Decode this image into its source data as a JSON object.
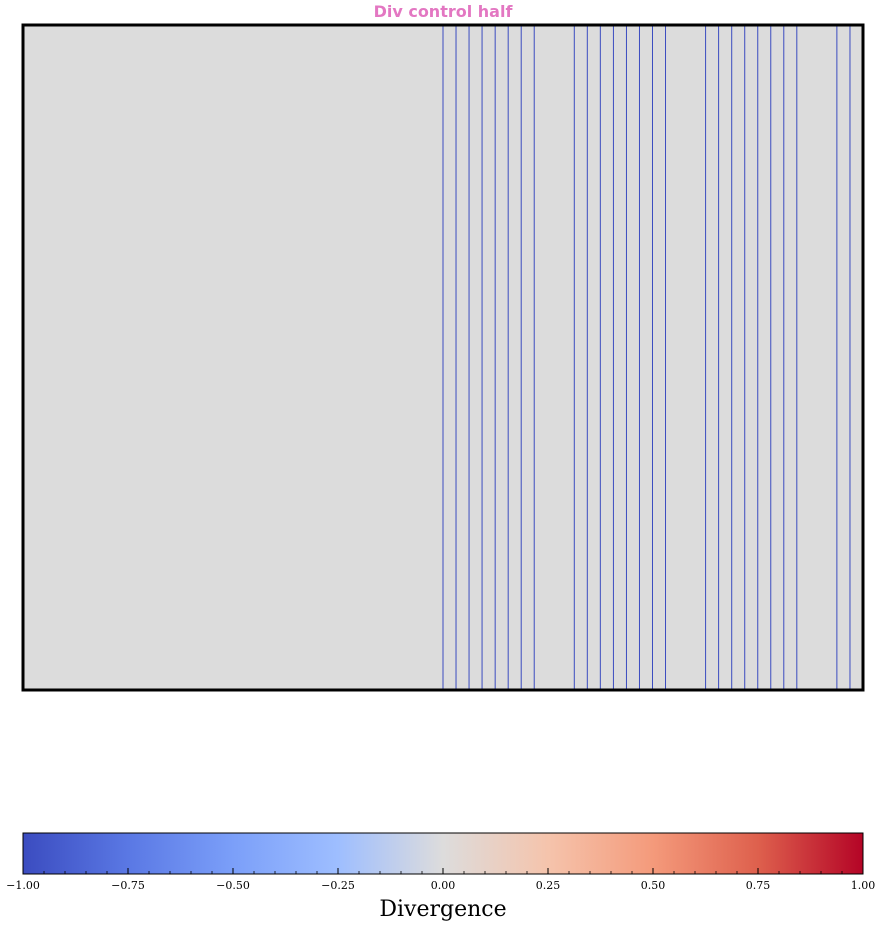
{
  "chart_data": {
    "type": "heatmap",
    "title": "Div control half",
    "background_color": "#dcdcdc",
    "line_color": "#3b4cc0",
    "vertical_lines_x_fraction": [
      0.5,
      0.5155,
      0.531,
      0.5465,
      0.5621,
      0.5776,
      0.5931,
      0.6086,
      0.6563,
      0.6718,
      0.6873,
      0.7029,
      0.7184,
      0.7339,
      0.7494,
      0.7649,
      0.8126,
      0.8281,
      0.8437,
      0.8592,
      0.8747,
      0.8902,
      0.9057,
      0.9212,
      0.9689,
      0.9845
    ],
    "colorbar": {
      "label": "Divergence",
      "cmap": "coolwarm",
      "range": [
        -1.0,
        1.0
      ],
      "ticks": [
        -1.0,
        -0.75,
        -0.5,
        -0.25,
        0.0,
        0.25,
        0.5,
        0.75,
        1.0
      ],
      "tick_labels": [
        "−1.00",
        "−0.75",
        "−0.50",
        "−0.25",
        "0.00",
        "0.25",
        "0.50",
        "0.75",
        "1.00"
      ]
    }
  }
}
